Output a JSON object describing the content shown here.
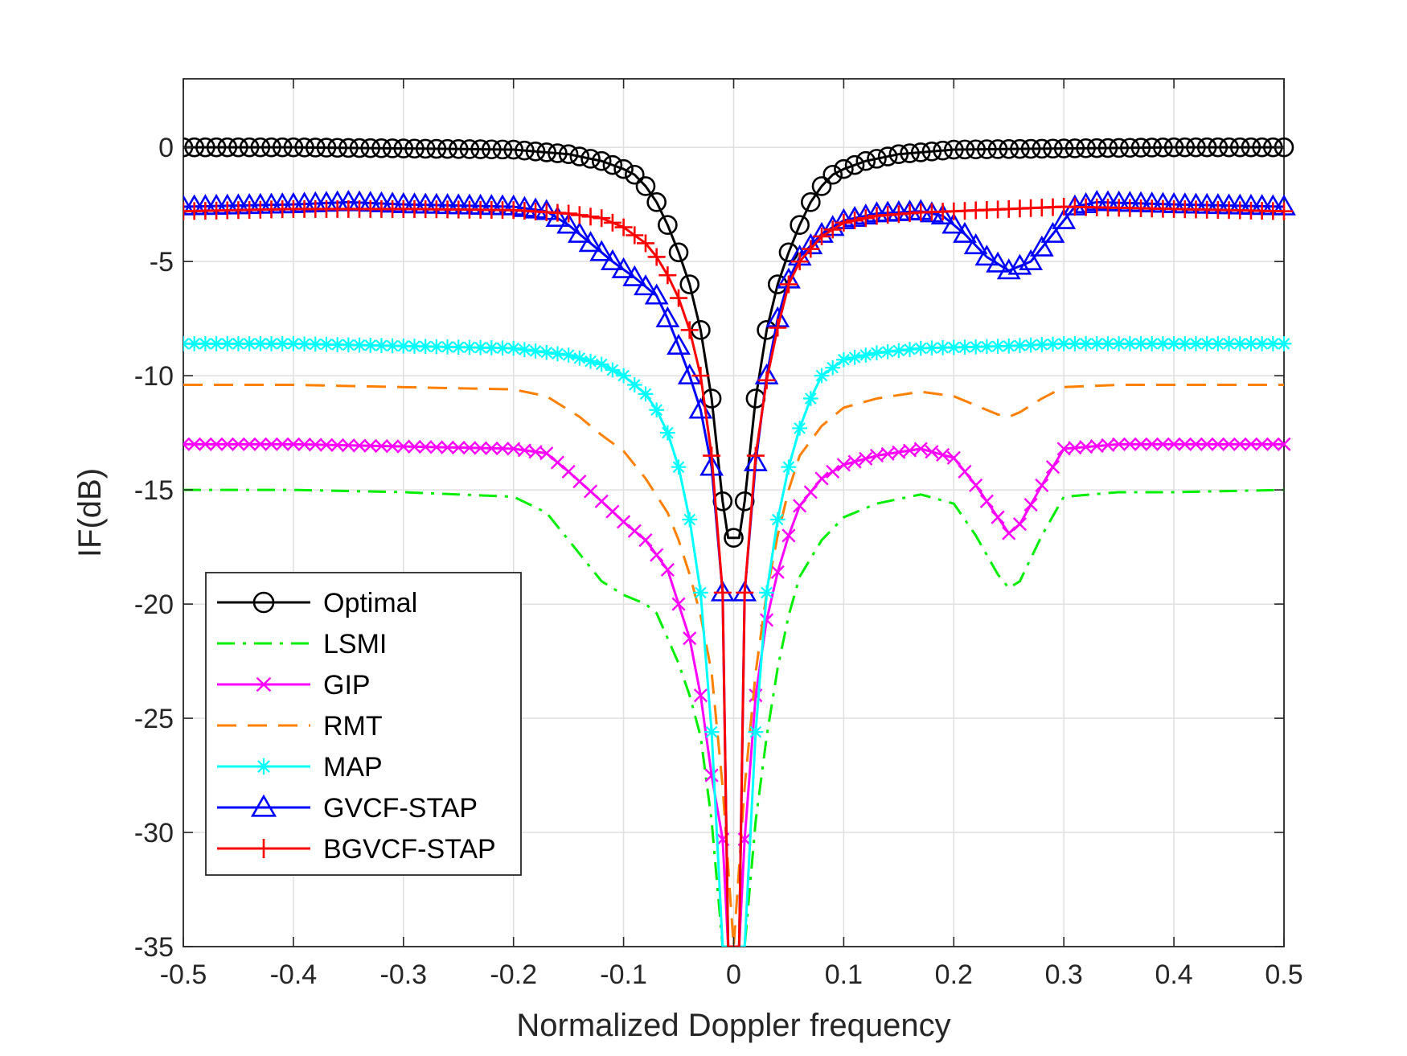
{
  "chart_data": {
    "type": "line",
    "title": "",
    "xlabel": "Normalized Doppler frequency",
    "ylabel": "IF(dB)",
    "xlim": [
      -0.5,
      0.5
    ],
    "ylim": [
      -35,
      3
    ],
    "xticks": [
      -0.5,
      -0.4,
      -0.3,
      -0.2,
      -0.1,
      0,
      0.1,
      0.2,
      0.3,
      0.4,
      0.5
    ],
    "xtick_labels": [
      "-0.5",
      "-0.4",
      "-0.3",
      "-0.2",
      "-0.1",
      "0",
      "0.1",
      "0.2",
      "0.3",
      "0.4",
      "0.5"
    ],
    "yticks": [
      0,
      -5,
      -10,
      -15,
      -20,
      -25,
      -30,
      -35
    ],
    "ytick_labels": [
      "0",
      "-5",
      "-10",
      "-15",
      "-20",
      "-25",
      "-30",
      "-35"
    ],
    "grid": true,
    "legend_position": "bottom-left",
    "series": [
      {
        "name": "Optimal",
        "color": "#000000",
        "dash": "solid",
        "marker": "circle",
        "points": [
          [
            -0.5,
            0
          ],
          [
            -0.4,
            0
          ],
          [
            -0.3,
            -0.05
          ],
          [
            -0.2,
            -0.1
          ],
          [
            -0.15,
            -0.3
          ],
          [
            -0.12,
            -0.6
          ],
          [
            -0.1,
            -0.95
          ],
          [
            -0.09,
            -1.2
          ],
          [
            -0.08,
            -1.7
          ],
          [
            -0.07,
            -2.4
          ],
          [
            -0.06,
            -3.4
          ],
          [
            -0.05,
            -4.6
          ],
          [
            -0.04,
            -6.0
          ],
          [
            -0.03,
            -8.0
          ],
          [
            -0.02,
            -11.0
          ],
          [
            -0.01,
            -15.5
          ],
          [
            -0.005,
            -17.1
          ],
          [
            0.005,
            -17.1
          ],
          [
            0.01,
            -15.5
          ],
          [
            0.02,
            -11.0
          ],
          [
            0.03,
            -8.0
          ],
          [
            0.04,
            -6.0
          ],
          [
            0.05,
            -4.6
          ],
          [
            0.06,
            -3.4
          ],
          [
            0.07,
            -2.4
          ],
          [
            0.08,
            -1.7
          ],
          [
            0.09,
            -1.2
          ],
          [
            0.1,
            -0.95
          ],
          [
            0.12,
            -0.6
          ],
          [
            0.15,
            -0.3
          ],
          [
            0.2,
            -0.1
          ],
          [
            0.3,
            -0.05
          ],
          [
            0.4,
            0
          ],
          [
            0.5,
            0
          ]
        ]
      },
      {
        "name": "LSMI",
        "color": "#00ee00",
        "dash": "dashdot",
        "marker": "none",
        "points": [
          [
            -0.5,
            -15
          ],
          [
            -0.4,
            -15
          ],
          [
            -0.3,
            -15.1
          ],
          [
            -0.2,
            -15.3
          ],
          [
            -0.17,
            -16.0
          ],
          [
            -0.14,
            -17.8
          ],
          [
            -0.12,
            -19.0
          ],
          [
            -0.1,
            -19.6
          ],
          [
            -0.08,
            -20.0
          ],
          [
            -0.07,
            -20.4
          ],
          [
            -0.06,
            -21.5
          ],
          [
            -0.05,
            -22.6
          ],
          [
            -0.04,
            -24.0
          ],
          [
            -0.03,
            -25.8
          ],
          [
            -0.02,
            -29.5
          ],
          [
            -0.01,
            -35
          ],
          [
            0.01,
            -35
          ],
          [
            0.02,
            -29.5
          ],
          [
            0.03,
            -25.8
          ],
          [
            0.04,
            -22.8
          ],
          [
            0.05,
            -20.5
          ],
          [
            0.06,
            -18.8
          ],
          [
            0.08,
            -17.2
          ],
          [
            0.1,
            -16.2
          ],
          [
            0.13,
            -15.6
          ],
          [
            0.17,
            -15.2
          ],
          [
            0.2,
            -15.6
          ],
          [
            0.22,
            -17.0
          ],
          [
            0.24,
            -18.7
          ],
          [
            0.25,
            -19.3
          ],
          [
            0.26,
            -19.0
          ],
          [
            0.28,
            -17.0
          ],
          [
            0.3,
            -15.3
          ],
          [
            0.35,
            -15.1
          ],
          [
            0.4,
            -15.1
          ],
          [
            0.5,
            -15
          ]
        ]
      },
      {
        "name": "GIP",
        "color": "#ff00ff",
        "dash": "solid",
        "marker": "x",
        "points": [
          [
            -0.5,
            -13
          ],
          [
            -0.4,
            -13
          ],
          [
            -0.3,
            -13.1
          ],
          [
            -0.2,
            -13.2
          ],
          [
            -0.17,
            -13.4
          ],
          [
            -0.15,
            -14.2
          ],
          [
            -0.12,
            -15.5
          ],
          [
            -0.1,
            -16.4
          ],
          [
            -0.08,
            -17.2
          ],
          [
            -0.06,
            -18.5
          ],
          [
            -0.05,
            -20.0
          ],
          [
            -0.04,
            -21.5
          ],
          [
            -0.03,
            -24.0
          ],
          [
            -0.02,
            -27.5
          ],
          [
            -0.01,
            -30.3
          ],
          [
            -0.005,
            -35
          ],
          [
            0.005,
            -35
          ],
          [
            0.01,
            -30.3
          ],
          [
            0.02,
            -24.0
          ],
          [
            0.03,
            -20.7
          ],
          [
            0.04,
            -18.6
          ],
          [
            0.05,
            -17.0
          ],
          [
            0.06,
            -15.7
          ],
          [
            0.08,
            -14.5
          ],
          [
            0.1,
            -13.9
          ],
          [
            0.13,
            -13.5
          ],
          [
            0.17,
            -13.2
          ],
          [
            0.2,
            -13.6
          ],
          [
            0.22,
            -14.8
          ],
          [
            0.24,
            -16.2
          ],
          [
            0.25,
            -16.9
          ],
          [
            0.26,
            -16.5
          ],
          [
            0.28,
            -14.8
          ],
          [
            0.3,
            -13.2
          ],
          [
            0.35,
            -13.0
          ],
          [
            0.4,
            -13.0
          ],
          [
            0.5,
            -13
          ]
        ]
      },
      {
        "name": "RMT",
        "color": "#ff8000",
        "dash": "dashed",
        "marker": "none",
        "points": [
          [
            -0.5,
            -10.4
          ],
          [
            -0.4,
            -10.4
          ],
          [
            -0.3,
            -10.5
          ],
          [
            -0.2,
            -10.6
          ],
          [
            -0.17,
            -10.9
          ],
          [
            -0.14,
            -11.8
          ],
          [
            -0.12,
            -12.6
          ],
          [
            -0.1,
            -13.3
          ],
          [
            -0.08,
            -14.5
          ],
          [
            -0.06,
            -16.0
          ],
          [
            -0.05,
            -17.2
          ],
          [
            -0.04,
            -18.7
          ],
          [
            -0.03,
            -20.5
          ],
          [
            -0.02,
            -23.0
          ],
          [
            -0.01,
            -28.0
          ],
          [
            0.0,
            -35
          ],
          [
            0.01,
            -28.0
          ],
          [
            0.02,
            -23.0
          ],
          [
            0.03,
            -19.5
          ],
          [
            0.04,
            -17.0
          ],
          [
            0.05,
            -15.0
          ],
          [
            0.06,
            -13.5
          ],
          [
            0.08,
            -12.2
          ],
          [
            0.1,
            -11.4
          ],
          [
            0.13,
            -11.0
          ],
          [
            0.17,
            -10.7
          ],
          [
            0.2,
            -10.9
          ],
          [
            0.22,
            -11.3
          ],
          [
            0.24,
            -11.7
          ],
          [
            0.25,
            -11.8
          ],
          [
            0.26,
            -11.6
          ],
          [
            0.28,
            -11.0
          ],
          [
            0.3,
            -10.5
          ],
          [
            0.35,
            -10.4
          ],
          [
            0.4,
            -10.4
          ],
          [
            0.5,
            -10.4
          ]
        ]
      },
      {
        "name": "MAP",
        "color": "#00ffff",
        "dash": "solid",
        "marker": "asterisk",
        "points": [
          [
            -0.5,
            -8.6
          ],
          [
            -0.4,
            -8.6
          ],
          [
            -0.3,
            -8.7
          ],
          [
            -0.2,
            -8.8
          ],
          [
            -0.15,
            -9.1
          ],
          [
            -0.12,
            -9.5
          ],
          [
            -0.1,
            -10.0
          ],
          [
            -0.08,
            -10.8
          ],
          [
            -0.07,
            -11.5
          ],
          [
            -0.06,
            -12.5
          ],
          [
            -0.05,
            -14.0
          ],
          [
            -0.04,
            -16.3
          ],
          [
            -0.03,
            -19.5
          ],
          [
            -0.02,
            -25.6
          ],
          [
            -0.01,
            -35
          ],
          [
            0.01,
            -35
          ],
          [
            0.02,
            -25.6
          ],
          [
            0.03,
            -19.5
          ],
          [
            0.04,
            -16.3
          ],
          [
            0.05,
            -14.0
          ],
          [
            0.06,
            -12.3
          ],
          [
            0.07,
            -11.0
          ],
          [
            0.08,
            -10.0
          ],
          [
            0.1,
            -9.3
          ],
          [
            0.13,
            -9.0
          ],
          [
            0.17,
            -8.8
          ],
          [
            0.25,
            -8.7
          ],
          [
            0.3,
            -8.6
          ],
          [
            0.4,
            -8.6
          ],
          [
            0.5,
            -8.6
          ]
        ]
      },
      {
        "name": "GVCF-STAP",
        "color": "#0000ff",
        "dash": "solid",
        "marker": "triangle",
        "points": [
          [
            -0.5,
            -2.6
          ],
          [
            -0.4,
            -2.5
          ],
          [
            -0.35,
            -2.4
          ],
          [
            -0.3,
            -2.5
          ],
          [
            -0.2,
            -2.6
          ],
          [
            -0.17,
            -2.8
          ],
          [
            -0.15,
            -3.4
          ],
          [
            -0.13,
            -4.2
          ],
          [
            -0.11,
            -5.0
          ],
          [
            -0.09,
            -5.7
          ],
          [
            -0.07,
            -6.5
          ],
          [
            -0.06,
            -7.5
          ],
          [
            -0.05,
            -8.7
          ],
          [
            -0.04,
            -10.0
          ],
          [
            -0.03,
            -11.5
          ],
          [
            -0.02,
            -14.0
          ],
          [
            -0.01,
            -19.5
          ],
          [
            -0.005,
            -35
          ],
          [
            0.005,
            -35
          ],
          [
            0.01,
            -19.5
          ],
          [
            0.02,
            -13.8
          ],
          [
            0.03,
            -10.0
          ],
          [
            0.04,
            -7.5
          ],
          [
            0.05,
            -5.8
          ],
          [
            0.06,
            -4.8
          ],
          [
            0.08,
            -3.8
          ],
          [
            0.1,
            -3.2
          ],
          [
            0.13,
            -2.9
          ],
          [
            0.17,
            -2.8
          ],
          [
            0.19,
            -3.0
          ],
          [
            0.21,
            -3.8
          ],
          [
            0.23,
            -4.8
          ],
          [
            0.25,
            -5.4
          ],
          [
            0.27,
            -5.0
          ],
          [
            0.29,
            -3.8
          ],
          [
            0.31,
            -2.6
          ],
          [
            0.33,
            -2.4
          ],
          [
            0.4,
            -2.5
          ],
          [
            0.5,
            -2.6
          ]
        ]
      },
      {
        "name": "BGVCF-STAP",
        "color": "#ff0000",
        "dash": "solid",
        "marker": "plus",
        "points": [
          [
            -0.5,
            -2.8
          ],
          [
            -0.4,
            -2.7
          ],
          [
            -0.3,
            -2.7
          ],
          [
            -0.2,
            -2.75
          ],
          [
            -0.15,
            -2.9
          ],
          [
            -0.12,
            -3.1
          ],
          [
            -0.1,
            -3.5
          ],
          [
            -0.08,
            -4.2
          ],
          [
            -0.07,
            -4.8
          ],
          [
            -0.06,
            -5.6
          ],
          [
            -0.05,
            -6.6
          ],
          [
            -0.04,
            -8.0
          ],
          [
            -0.03,
            -10.0
          ],
          [
            -0.02,
            -13.5
          ],
          [
            -0.01,
            -19.5
          ],
          [
            -0.005,
            -35
          ],
          [
            0.005,
            -35
          ],
          [
            0.01,
            -19.5
          ],
          [
            0.02,
            -13.5
          ],
          [
            0.03,
            -10.2
          ],
          [
            0.04,
            -7.9
          ],
          [
            0.05,
            -6.0
          ],
          [
            0.06,
            -5.0
          ],
          [
            0.08,
            -3.9
          ],
          [
            0.1,
            -3.3
          ],
          [
            0.13,
            -3.0
          ],
          [
            0.17,
            -2.85
          ],
          [
            0.2,
            -2.8
          ],
          [
            0.25,
            -2.7
          ],
          [
            0.3,
            -2.6
          ],
          [
            0.4,
            -2.7
          ],
          [
            0.5,
            -2.8
          ]
        ]
      }
    ]
  }
}
